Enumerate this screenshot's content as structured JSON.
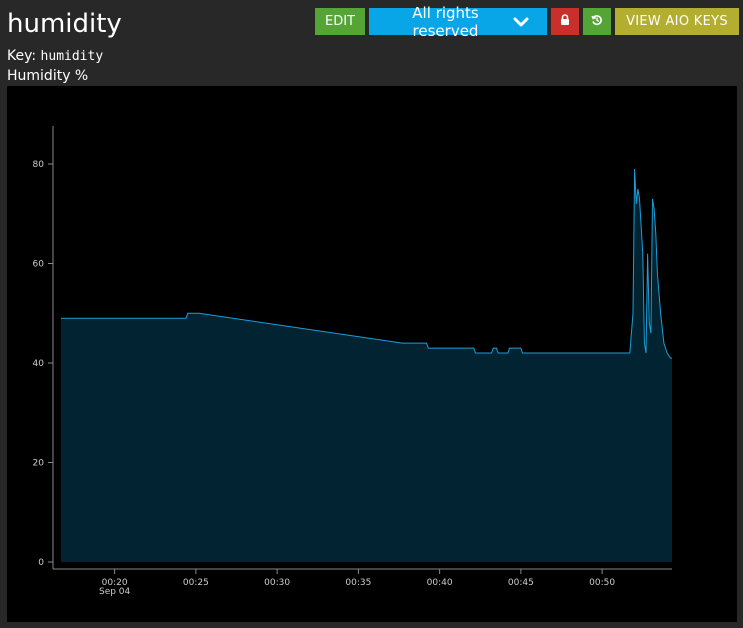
{
  "feed": {
    "name": "humidity",
    "key_label": "Key:",
    "key_value": "humidity",
    "unit_label": "Humidity %"
  },
  "toolbar": {
    "edit_label": "EDIT",
    "license_label": "All rights reserved",
    "keys_label": "VIEW AIO KEYS",
    "lock_icon": "lock-icon",
    "history_icon": "history-icon",
    "chevron_icon": "chevron-down-icon",
    "edit_color": "#55a536",
    "license_color": "#08a6e6",
    "lock_color": "#c9302c",
    "keys_color": "#b3ae2f"
  },
  "chart_data": {
    "type": "area",
    "xlabel": "",
    "ylabel": "",
    "ylim": [
      0,
      90
    ],
    "yticks": [
      0,
      20,
      40,
      60,
      80
    ],
    "xtick_labels": [
      "00:20",
      "00:25",
      "00:30",
      "00:35",
      "00:40",
      "00:45",
      "00:50"
    ],
    "xtick_date": "Sep 04",
    "grid": false,
    "line_color": "#1a9fd9",
    "fill_color": "#012332",
    "x_minutes_after_midnight": [
      16.7,
      24.4,
      24.5,
      25.2,
      37.7,
      39.2,
      39.3,
      42.1,
      42.2,
      43.2,
      43.3,
      43.5,
      43.6,
      44.2,
      44.3,
      45.0,
      45.1,
      51.7,
      51.9,
      52.0,
      52.1,
      52.2,
      52.3,
      52.5,
      52.6,
      52.7,
      52.8,
      52.9,
      53.0,
      53.1,
      53.2,
      53.3,
      53.4,
      53.6,
      53.8,
      54.0,
      54.2,
      54.3
    ],
    "values": [
      49,
      49,
      50,
      50,
      44,
      44,
      43,
      43,
      42,
      42,
      43,
      43,
      42,
      42,
      43,
      43,
      42,
      42,
      50,
      79,
      72,
      75,
      73,
      62,
      44,
      42,
      62,
      48,
      46,
      73,
      71,
      66,
      58,
      50,
      44,
      42,
      41,
      41
    ]
  }
}
